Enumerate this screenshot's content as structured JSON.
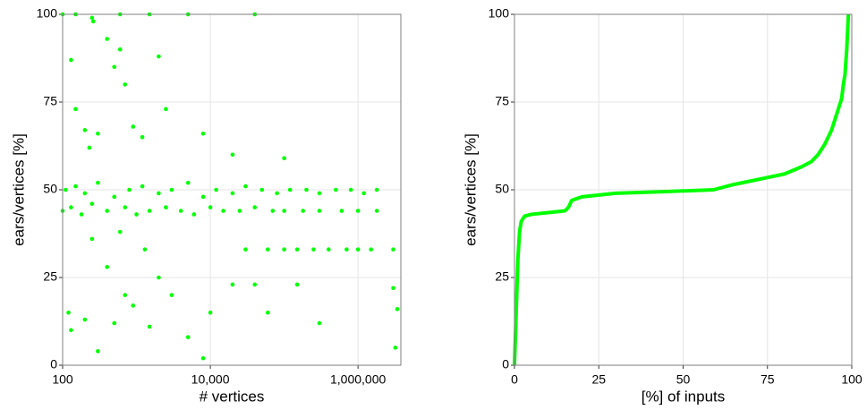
{
  "chart_data": [
    {
      "type": "scatter",
      "log_x": true,
      "grid": true,
      "color": "#00ff00",
      "xlabel": "# vertices",
      "ylabel": "ears/vertices [%]",
      "xlim": [
        100,
        3800000
      ],
      "ylim": [
        0,
        100
      ],
      "xticks": [
        100,
        {
          "value": 10000,
          "label": "10,000"
        },
        {
          "value": 1000000,
          "label": "1,000,000"
        }
      ],
      "yticks": [
        0,
        25,
        50,
        75,
        100
      ],
      "x": [
        110,
        150,
        200,
        300,
        500,
        800,
        1200,
        2000,
        3000,
        5000,
        8000,
        12000,
        20000,
        30000,
        50000,
        80000,
        120000,
        200000,
        300000,
        500000,
        800000,
        1200000,
        1800000,
        100,
        130,
        180,
        250,
        400,
        700,
        1000,
        1500,
        2500,
        4000,
        6000,
        10000,
        15000,
        25000,
        40000,
        70000,
        100000,
        180000,
        300000,
        600000,
        1000000,
        1800000,
        30000,
        60000,
        100000,
        150000,
        250000,
        400000,
        700000,
        1000000,
        1500000,
        3000000,
        100,
        150,
        250,
        260,
        600,
        1500,
        5000,
        40000,
        130,
        150,
        200,
        230,
        300,
        400,
        500,
        600,
        700,
        900,
        1200,
        2000,
        2500,
        8000,
        20000,
        100000,
        120,
        130,
        200,
        300,
        400,
        500,
        700,
        900,
        1500,
        2000,
        3000,
        5000,
        8000,
        10000,
        20000,
        40000,
        60000,
        150000,
        300000,
        3000000,
        3200000,
        3400000,
        1300,
        600,
        250
      ],
      "values": [
        50,
        51,
        49,
        52,
        48,
        50,
        51,
        49,
        50,
        52,
        48,
        50,
        49,
        51,
        50,
        49,
        50,
        50,
        49,
        50,
        50,
        49,
        50,
        44,
        45,
        43,
        46,
        44,
        45,
        43,
        44,
        45,
        44,
        43,
        45,
        44,
        44,
        45,
        44,
        44,
        44,
        44,
        44,
        44,
        44,
        33,
        33,
        33,
        33,
        33,
        33,
        33,
        33,
        33,
        33,
        100,
        100,
        99,
        98,
        100,
        100,
        100,
        100,
        87,
        73,
        67,
        62,
        66,
        93,
        85,
        90,
        80,
        68,
        65,
        88,
        73,
        66,
        60,
        59,
        15,
        10,
        13,
        4,
        28,
        12,
        20,
        17,
        11,
        25,
        20,
        8,
        2,
        15,
        23,
        23,
        15,
        23,
        12,
        22,
        5,
        16,
        33,
        38,
        36
      ]
    },
    {
      "type": "line",
      "grid": true,
      "color": "#00ff00",
      "xlabel": "[%] of inputs",
      "ylabel": "ears/vertices [%]",
      "xlim": [
        0,
        100
      ],
      "ylim": [
        0,
        100
      ],
      "xticks": [
        0,
        25,
        50,
        75,
        100
      ],
      "yticks": [
        0,
        25,
        50,
        75,
        100
      ],
      "x": [
        0,
        0.5,
        1,
        1.5,
        2,
        3,
        5,
        10,
        15,
        16,
        17,
        20,
        30,
        45,
        59,
        65,
        75,
        80,
        85,
        88,
        90,
        92,
        93,
        94,
        95,
        96,
        97,
        97.5,
        98,
        98.5,
        99
      ],
      "values": [
        0,
        15,
        30,
        38,
        41,
        42.5,
        43,
        43.5,
        44,
        45,
        47,
        48,
        49,
        49.5,
        50,
        51.5,
        53.5,
        54.5,
        56.5,
        58,
        60,
        63,
        65,
        67,
        70,
        73,
        76,
        80,
        83,
        90,
        100
      ]
    }
  ]
}
